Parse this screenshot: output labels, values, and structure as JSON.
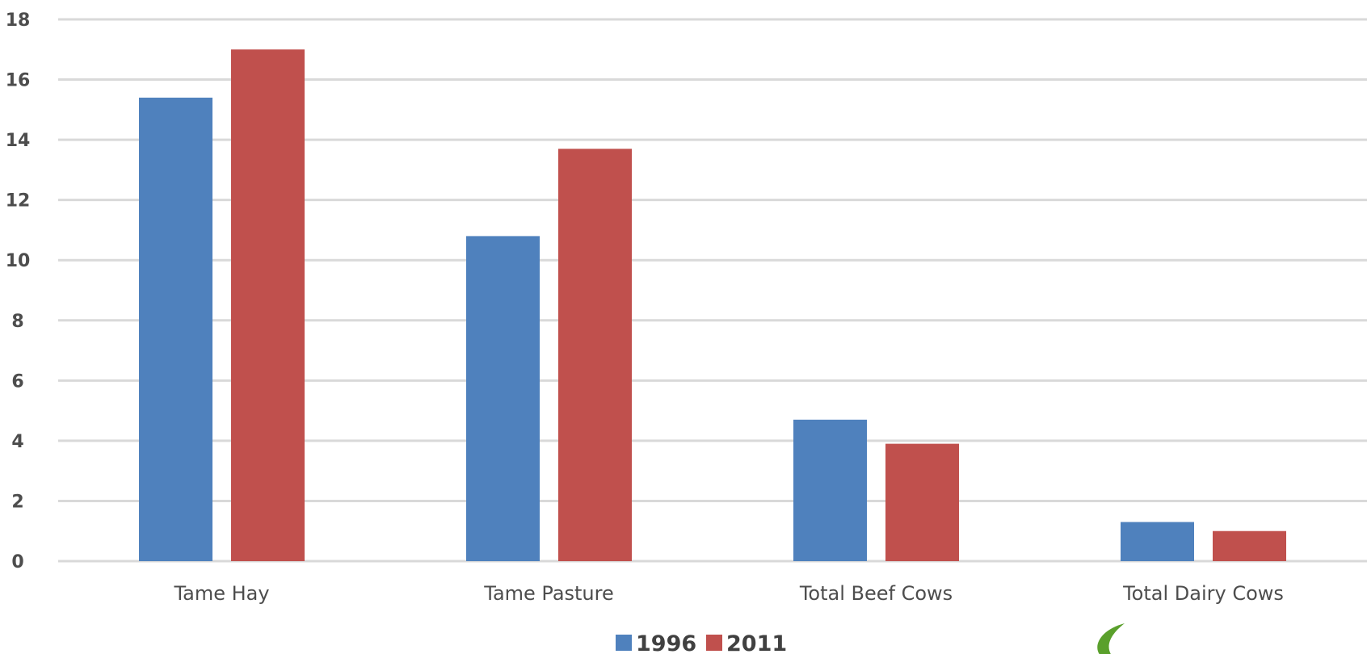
{
  "chart_data": {
    "type": "bar",
    "categories": [
      "Tame Hay",
      "Tame Pasture",
      "Total Beef Cows",
      "Total Dairy Cows"
    ],
    "series": [
      {
        "name": "1996",
        "values": [
          15.4,
          10.8,
          4.7,
          1.3
        ],
        "color": "#4f81bd"
      },
      {
        "name": "2011",
        "values": [
          17.0,
          13.7,
          3.9,
          1.0
        ],
        "color": "#c0504d"
      }
    ],
    "title": "",
    "xlabel": "",
    "ylabel": "",
    "ylim": [
      0,
      18
    ],
    "yticks": [
      "0",
      "2",
      "4",
      "6",
      "8",
      "10",
      "12",
      "14",
      "16",
      "18"
    ],
    "grid": true,
    "legend_position": "bottom-center",
    "logo": {
      "name": "leaf-logo-icon",
      "color": "#5aa02c"
    }
  }
}
